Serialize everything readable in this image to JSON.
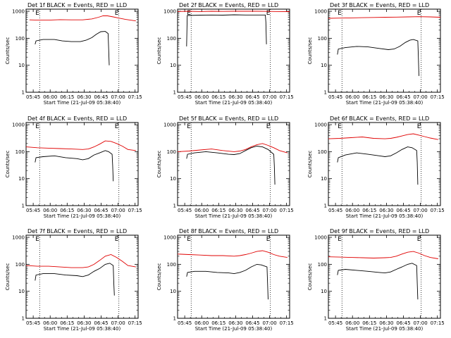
{
  "colors": {
    "events_series": "#000000",
    "lld_series": "#e00000",
    "frame": "#000000",
    "marker_line": "#000000"
  },
  "common": {
    "xlabel": "Start Time (21-Jul-09 05:38:40)",
    "ylabel": "Counts/sec",
    "x_tick_labels": [
      "05:45",
      "06:00",
      "06:15",
      "06:30",
      "06:45",
      "07:00",
      "07:15"
    ],
    "y_tick_labels": [
      "1",
      "10",
      "100",
      "1000"
    ],
    "marker_labels": [
      "E",
      "E"
    ]
  },
  "chart_data": [
    {
      "type": "line",
      "title": "Det 1f BLACK = Events, RED = LLD",
      "x_unit": "minutes after 05:38:40 start",
      "xlim": [
        0,
        99
      ],
      "ylim": [
        1,
        1200
      ],
      "yscale": "log",
      "x_ticks": [
        6.3,
        21.3,
        36.3,
        51.3,
        66.3,
        81.3,
        96.3
      ],
      "vlines": [
        12,
        82
      ],
      "series": [
        {
          "color": "#e00000",
          "x": [
            3,
            10,
            20,
            30,
            40,
            50,
            58,
            64,
            68,
            72,
            77,
            82,
            88,
            97
          ],
          "y": [
            480,
            470,
            470,
            490,
            480,
            480,
            520,
            600,
            680,
            680,
            620,
            560,
            500,
            440
          ]
        },
        {
          "color": "#000000",
          "x": [
            8,
            8.8,
            15,
            25,
            32,
            40,
            48,
            53,
            58,
            62,
            66,
            70,
            72.5,
            73,
            73.5
          ],
          "y": [
            60,
            80,
            90,
            90,
            80,
            75,
            75,
            85,
            105,
            140,
            175,
            180,
            150,
            40,
            10
          ]
        }
      ]
    },
    {
      "type": "line",
      "title": "Det 2f BLACK = Events, RED = LLD",
      "x_unit": "minutes after 05:38:40 start",
      "xlim": [
        0,
        99
      ],
      "ylim": [
        1,
        1200
      ],
      "yscale": "log",
      "x_ticks": [
        6.3,
        21.3,
        36.3,
        51.3,
        66.3,
        81.3,
        96.3
      ],
      "vlines": [
        12,
        82
      ],
      "series": [
        {
          "color": "#e00000",
          "x": [
            0,
            10,
            20,
            30,
            40,
            50,
            60,
            70,
            80,
            90,
            99
          ],
          "y": [
            980,
            1000,
            980,
            1000,
            990,
            1000,
            1000,
            1000,
            990,
            980,
            970
          ]
        },
        {
          "color": "#000000",
          "x": [
            8,
            8.5,
            20,
            30,
            40,
            50,
            60,
            70,
            77.5,
            78,
            78.5
          ],
          "y": [
            50,
            700,
            720,
            730,
            720,
            740,
            730,
            730,
            730,
            400,
            60
          ]
        }
      ]
    },
    {
      "type": "line",
      "title": "Det 3f BLACK = Events, RED = LLD",
      "x_unit": "minutes after 05:38:40 start",
      "xlim": [
        0,
        99
      ],
      "ylim": [
        1,
        1200
      ],
      "yscale": "log",
      "x_ticks": [
        6.3,
        21.3,
        36.3,
        51.3,
        66.3,
        81.3,
        96.3
      ],
      "vlines": [
        12,
        82
      ],
      "series": [
        {
          "color": "#e00000",
          "x": [
            0,
            10,
            20,
            30,
            40,
            50,
            60,
            70,
            80,
            90,
            99
          ],
          "y": [
            550,
            560,
            570,
            580,
            590,
            600,
            610,
            620,
            630,
            620,
            600
          ]
        },
        {
          "color": "#000000",
          "x": [
            8,
            8.8,
            15,
            25,
            35,
            45,
            53,
            58,
            63,
            68,
            72,
            75,
            79,
            79.5,
            80
          ],
          "y": [
            25,
            40,
            45,
            50,
            48,
            42,
            38,
            40,
            50,
            70,
            85,
            90,
            80,
            20,
            4
          ]
        }
      ]
    },
    {
      "type": "line",
      "title": "Det 4f BLACK = Events, RED = LLD",
      "x_unit": "minutes after 05:38:40 start",
      "xlim": [
        0,
        99
      ],
      "ylim": [
        1,
        1200
      ],
      "yscale": "log",
      "x_ticks": [
        6.3,
        21.3,
        36.3,
        51.3,
        66.3,
        81.3,
        96.3
      ],
      "vlines": [
        12,
        82
      ],
      "series": [
        {
          "color": "#e00000",
          "x": [
            0,
            10,
            20,
            30,
            40,
            50,
            55,
            60,
            65,
            70,
            75,
            80,
            85,
            90,
            97
          ],
          "y": [
            150,
            140,
            135,
            130,
            125,
            120,
            125,
            150,
            190,
            250,
            240,
            200,
            160,
            120,
            110
          ]
        },
        {
          "color": "#000000",
          "x": [
            8,
            8.8,
            15,
            25,
            35,
            45,
            50,
            55,
            60,
            65,
            70,
            73,
            76,
            76.5,
            77
          ],
          "y": [
            40,
            60,
            65,
            70,
            60,
            55,
            50,
            55,
            75,
            90,
            110,
            100,
            80,
            30,
            8
          ]
        }
      ]
    },
    {
      "type": "line",
      "title": "Det 5f BLACK = Events, RED = LLD",
      "x_unit": "minutes after 05:38:40 start",
      "xlim": [
        0,
        99
      ],
      "ylim": [
        1,
        1200
      ],
      "yscale": "log",
      "x_ticks": [
        6.3,
        21.3,
        36.3,
        51.3,
        66.3,
        81.3,
        96.3
      ],
      "vlines": [
        12,
        82
      ],
      "series": [
        {
          "color": "#e00000",
          "x": [
            0,
            10,
            20,
            30,
            40,
            50,
            55,
            60,
            65,
            70,
            75,
            80,
            85,
            90,
            97
          ],
          "y": [
            100,
            105,
            115,
            125,
            110,
            100,
            105,
            120,
            150,
            180,
            200,
            170,
            140,
            110,
            90
          ]
        },
        {
          "color": "#000000",
          "x": [
            8,
            8.8,
            15,
            25,
            35,
            45,
            50,
            55,
            60,
            65,
            70,
            75,
            80,
            85,
            85.5,
            86
          ],
          "y": [
            55,
            80,
            90,
            100,
            90,
            80,
            78,
            85,
            110,
            140,
            160,
            150,
            120,
            80,
            30,
            6
          ]
        }
      ]
    },
    {
      "type": "line",
      "title": "Det 6f BLACK = Events, RED = LLD",
      "x_unit": "minutes after 05:38:40 start",
      "xlim": [
        0,
        99
      ],
      "ylim": [
        1,
        1200
      ],
      "yscale": "log",
      "x_ticks": [
        6.3,
        21.3,
        36.3,
        51.3,
        66.3,
        81.3,
        96.3
      ],
      "vlines": [
        12,
        82
      ],
      "series": [
        {
          "color": "#e00000",
          "x": [
            0,
            10,
            20,
            30,
            40,
            50,
            55,
            60,
            65,
            70,
            75,
            80,
            85,
            90,
            97
          ],
          "y": [
            300,
            310,
            330,
            350,
            310,
            300,
            310,
            340,
            380,
            430,
            460,
            410,
            360,
            320,
            280
          ]
        },
        {
          "color": "#000000",
          "x": [
            8,
            8.8,
            15,
            25,
            35,
            45,
            50,
            55,
            60,
            65,
            70,
            74,
            78,
            78.5,
            79
          ],
          "y": [
            40,
            60,
            75,
            90,
            80,
            70,
            65,
            70,
            90,
            120,
            150,
            140,
            110,
            40,
            6
          ]
        }
      ]
    },
    {
      "type": "line",
      "title": "Det 7f BLACK = Events, RED = LLD",
      "x_unit": "minutes after 05:38:40 start",
      "xlim": [
        0,
        99
      ],
      "ylim": [
        1,
        1200
      ],
      "yscale": "log",
      "x_ticks": [
        6.3,
        21.3,
        36.3,
        51.3,
        66.3,
        81.3,
        96.3
      ],
      "vlines": [
        12,
        82
      ],
      "series": [
        {
          "color": "#e00000",
          "x": [
            0,
            10,
            20,
            30,
            40,
            50,
            55,
            60,
            65,
            70,
            75,
            80,
            85,
            90,
            97
          ],
          "y": [
            90,
            85,
            85,
            80,
            75,
            75,
            80,
            100,
            140,
            200,
            230,
            180,
            130,
            90,
            80
          ]
        },
        {
          "color": "#000000",
          "x": [
            8,
            8.8,
            15,
            25,
            35,
            45,
            50,
            55,
            60,
            65,
            70,
            74,
            77,
            77.5,
            78
          ],
          "y": [
            25,
            40,
            45,
            45,
            40,
            38,
            35,
            40,
            55,
            70,
            100,
            110,
            90,
            20,
            7
          ]
        }
      ]
    },
    {
      "type": "line",
      "title": "Det 8f BLACK = Events, RED = LLD",
      "x_unit": "minutes after 05:38:40 start",
      "xlim": [
        0,
        99
      ],
      "ylim": [
        1,
        1200
      ],
      "yscale": "log",
      "x_ticks": [
        6.3,
        21.3,
        36.3,
        51.3,
        66.3,
        81.3,
        96.3
      ],
      "vlines": [
        12,
        82
      ],
      "series": [
        {
          "color": "#e00000",
          "x": [
            0,
            10,
            20,
            30,
            40,
            50,
            55,
            60,
            65,
            70,
            75,
            80,
            85,
            90,
            97
          ],
          "y": [
            240,
            230,
            220,
            210,
            210,
            200,
            210,
            230,
            260,
            300,
            320,
            280,
            230,
            200,
            180
          ]
        },
        {
          "color": "#000000",
          "x": [
            8,
            8.8,
            15,
            25,
            35,
            45,
            50,
            55,
            60,
            65,
            70,
            74,
            79,
            79.5,
            80
          ],
          "y": [
            35,
            50,
            55,
            55,
            50,
            48,
            45,
            50,
            60,
            80,
            100,
            95,
            80,
            20,
            5
          ]
        }
      ]
    },
    {
      "type": "line",
      "title": "Det 9f BLACK = Events, RED = LLD",
      "x_unit": "minutes after 05:38:40 start",
      "xlim": [
        0,
        99
      ],
      "ylim": [
        1,
        1200
      ],
      "yscale": "log",
      "x_ticks": [
        6.3,
        21.3,
        36.3,
        51.3,
        66.3,
        81.3,
        96.3
      ],
      "vlines": [
        12,
        82
      ],
      "series": [
        {
          "color": "#e00000",
          "x": [
            0,
            10,
            20,
            30,
            40,
            50,
            55,
            60,
            65,
            70,
            75,
            80,
            85,
            90,
            97
          ],
          "y": [
            190,
            185,
            180,
            175,
            170,
            175,
            180,
            200,
            240,
            280,
            300,
            260,
            210,
            180,
            160
          ]
        },
        {
          "color": "#000000",
          "x": [
            8,
            8.8,
            15,
            25,
            35,
            45,
            50,
            55,
            60,
            65,
            70,
            74,
            78,
            78.5,
            79
          ],
          "y": [
            40,
            60,
            65,
            60,
            55,
            50,
            48,
            52,
            65,
            80,
            100,
            110,
            90,
            20,
            5
          ]
        }
      ]
    }
  ]
}
